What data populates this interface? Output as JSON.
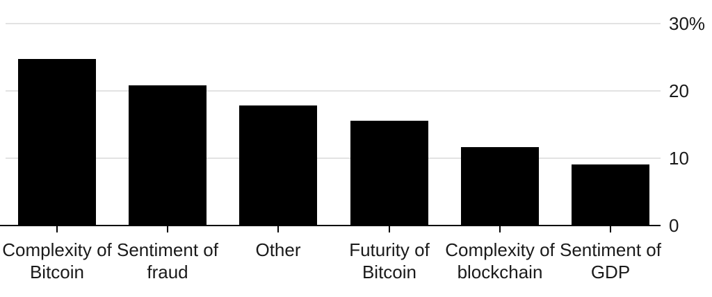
{
  "chart_data": {
    "type": "bar",
    "title": "",
    "xlabel": "",
    "ylabel": "",
    "categories": [
      "Complexity of Bitcoin",
      "Sentiment of fraud",
      "Other",
      "Futurity of Bitcoin",
      "Complexity of blockchain",
      "Sentiment of GDP"
    ],
    "categories_lines": [
      [
        "Complexity of",
        "Bitcoin"
      ],
      [
        "Sentiment of",
        "fraud"
      ],
      [
        "Other"
      ],
      [
        "Futurity of",
        "Bitcoin"
      ],
      [
        "Complexity of",
        "blockchain"
      ],
      [
        "Sentiment of",
        "GDP"
      ]
    ],
    "values": [
      24.7,
      20.8,
      17.8,
      15.6,
      11.7,
      9.1
    ],
    "ylim": [
      0,
      30
    ],
    "yticks": [
      {
        "value": 30,
        "label": "30%"
      },
      {
        "value": 20,
        "label": "20"
      },
      {
        "value": 10,
        "label": "10"
      },
      {
        "value": 0,
        "label": "0"
      }
    ],
    "grid": "horizontal",
    "legend": "none",
    "colors": {
      "bar": "#000000",
      "gridline": "#e2e2e2",
      "axis": "#000000",
      "text": "#1a1a1a",
      "background": "#ffffff"
    }
  }
}
